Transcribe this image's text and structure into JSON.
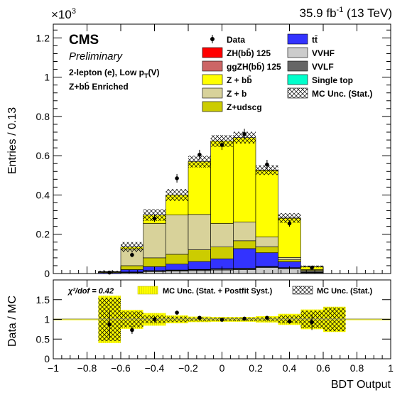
{
  "header": {
    "lumi_label": "35.9 fb",
    "lumi_sup": "-1",
    "lumi_energy": " (13 TeV)",
    "exponent_base": "×10",
    "exponent_power": "3"
  },
  "labels": {
    "experiment": "CMS",
    "status": "Preliminary",
    "channel_main": "2-lepton (e), Low p",
    "channel_sub": "T",
    "channel_end": "(V)",
    "region": "Z+bb̄ Enriched"
  },
  "axes": {
    "upper_ylabel": "Entries / 0.13",
    "lower_ylabel": "Data / MC",
    "xlabel": "BDT Output"
  },
  "colors": {
    "zh": "#ff0000",
    "ggzh": "#cc6666",
    "zbb": "#ffff00",
    "zb": "#d8d29a",
    "zudscg": "#cccc00",
    "ttbar": "#3333ff",
    "vvhf": "#cccccc",
    "vvlf": "#666666",
    "singletop": "#00ffcc",
    "ratio_band": "#ffff00"
  },
  "legend": [
    {
      "key": "data",
      "label": "Data",
      "kind": "marker"
    },
    {
      "key": "ttbar",
      "label": "tt̄",
      "kind": "box"
    },
    {
      "key": "zh",
      "label": "ZH(bb̄) 125",
      "kind": "box"
    },
    {
      "key": "vvhf",
      "label": "VVHF",
      "kind": "box"
    },
    {
      "key": "ggzh",
      "label": "ggZH(bb̄) 125",
      "kind": "box"
    },
    {
      "key": "vvlf",
      "label": "VVLF",
      "kind": "box"
    },
    {
      "key": "zbb",
      "label": "Z + bb̄",
      "kind": "box"
    },
    {
      "key": "singletop",
      "label": "Single top",
      "kind": "box"
    },
    {
      "key": "zb",
      "label": "Z + b",
      "kind": "box"
    },
    {
      "key": "unc",
      "label": "MC Unc. (Stat.)",
      "kind": "hatch"
    },
    {
      "key": "zudscg",
      "label": "Z+udscg",
      "kind": "box"
    }
  ],
  "ratio_legend": {
    "chi2_label": "χ²/dof = 0.42",
    "band_label": "MC Unc. (Stat. + Postfit Syst.)",
    "hatch_label": "MC Unc. (Stat.)"
  },
  "chart_data": {
    "type": "bar",
    "stacked": true,
    "bin_edges": [
      -0.733,
      -0.6,
      -0.467,
      -0.333,
      -0.2,
      -0.067,
      0.067,
      0.2,
      0.333,
      0.467,
      0.6
    ],
    "xlim": [
      -1,
      1
    ],
    "x_ticks": [
      -1,
      -0.8,
      -0.6,
      -0.4,
      -0.2,
      0,
      0.2,
      0.4,
      0.6,
      0.8,
      1
    ],
    "ylim": [
      0,
      1.27
    ],
    "y_ticks": [
      0,
      0.2,
      0.4,
      0.6,
      0.8,
      1,
      1.2
    ],
    "y_multiplier": 1000,
    "series": [
      {
        "key": "vvhf",
        "name": "VVHF",
        "values": [
          0,
          0.005,
          0.01,
          0.012,
          0.015,
          0.018,
          0.02,
          0.03,
          0.025,
          0.004
        ]
      },
      {
        "key": "vvlf",
        "name": "VVLF",
        "values": [
          0,
          0.002,
          0.003,
          0.004,
          0.004,
          0.005,
          0.005,
          0.004,
          0.003,
          0.001
        ]
      },
      {
        "key": "singletop",
        "name": "Single top",
        "values": [
          0,
          0.001,
          0.002,
          0.002,
          0.002,
          0.002,
          0.002,
          0.002,
          0.002,
          0.001
        ]
      },
      {
        "key": "ttbar",
        "name": "tt̄",
        "values": [
          0.005,
          0.012,
          0.02,
          0.03,
          0.04,
          0.05,
          0.1,
          0.07,
          0.03,
          0.004
        ]
      },
      {
        "key": "zudscg",
        "name": "Z+udscg",
        "values": [
          0.003,
          0.02,
          0.045,
          0.05,
          0.06,
          0.06,
          0.04,
          0.03,
          0.01,
          0.006
        ]
      },
      {
        "key": "zb",
        "name": "Z + b",
        "values": [
          0.002,
          0.085,
          0.175,
          0.2,
          0.18,
          0.12,
          0.095,
          0.05,
          0.012,
          0.004
        ]
      },
      {
        "key": "zbb",
        "name": "Z + bb̄",
        "values": [
          0.0,
          0.01,
          0.043,
          0.102,
          0.269,
          0.42,
          0.43,
          0.34,
          0.2,
          0.015
        ]
      },
      {
        "key": "ggzh",
        "name": "ggZH(bb̄) 125",
        "values": [
          0,
          0,
          0,
          0,
          0,
          0,
          0,
          0,
          0,
          0
        ]
      },
      {
        "key": "zh",
        "name": "ZH(bb̄) 125",
        "values": [
          0,
          0,
          0,
          0,
          0,
          0,
          0,
          0.001,
          0.001,
          0.001
        ]
      }
    ],
    "mc_stat_unc": [
      0.004,
      0.025,
      0.03,
      0.03,
      0.03,
      0.03,
      0.03,
      0.025,
      0.025,
      0.005
    ],
    "data": {
      "name": "Data",
      "x": [
        -0.667,
        -0.533,
        -0.4,
        -0.267,
        -0.133,
        0,
        0.133,
        0.267,
        0.4,
        0.533
      ],
      "y": [
        0.005,
        0.095,
        0.28,
        0.485,
        0.605,
        0.655,
        0.71,
        0.555,
        0.255,
        0.03
      ],
      "yerr": [
        0.006,
        0.012,
        0.017,
        0.022,
        0.025,
        0.026,
        0.027,
        0.024,
        0.016,
        0.006
      ]
    },
    "ratio": {
      "ylim": [
        0,
        2
      ],
      "y_ticks": [
        0,
        0.5,
        1,
        1.5
      ],
      "x": [
        -0.667,
        -0.533,
        -0.4,
        -0.267,
        -0.133,
        0,
        0.133,
        0.267,
        0.4,
        0.533
      ],
      "y": [
        0.87,
        0.73,
        1.0,
        1.17,
        1.04,
        0.99,
        1.02,
        1.04,
        0.95,
        0.93
      ],
      "yerr": [
        0.35,
        0.1,
        0.06,
        0.05,
        0.04,
        0.04,
        0.04,
        0.04,
        0.06,
        0.2
      ],
      "band_halfwidth": [
        0.6,
        0.24,
        0.16,
        0.1,
        0.07,
        0.06,
        0.06,
        0.08,
        0.14,
        0.25,
        0.32
      ],
      "band_edges": [
        -0.733,
        -0.6,
        -0.467,
        -0.333,
        -0.2,
        -0.067,
        0.067,
        0.2,
        0.333,
        0.467,
        0.6,
        0.733
      ],
      "hatch_halfwidth": [
        0.55,
        0.2,
        0.1,
        0.07,
        0.05,
        0.045,
        0.045,
        0.05,
        0.1,
        0.22,
        0.3
      ]
    }
  }
}
